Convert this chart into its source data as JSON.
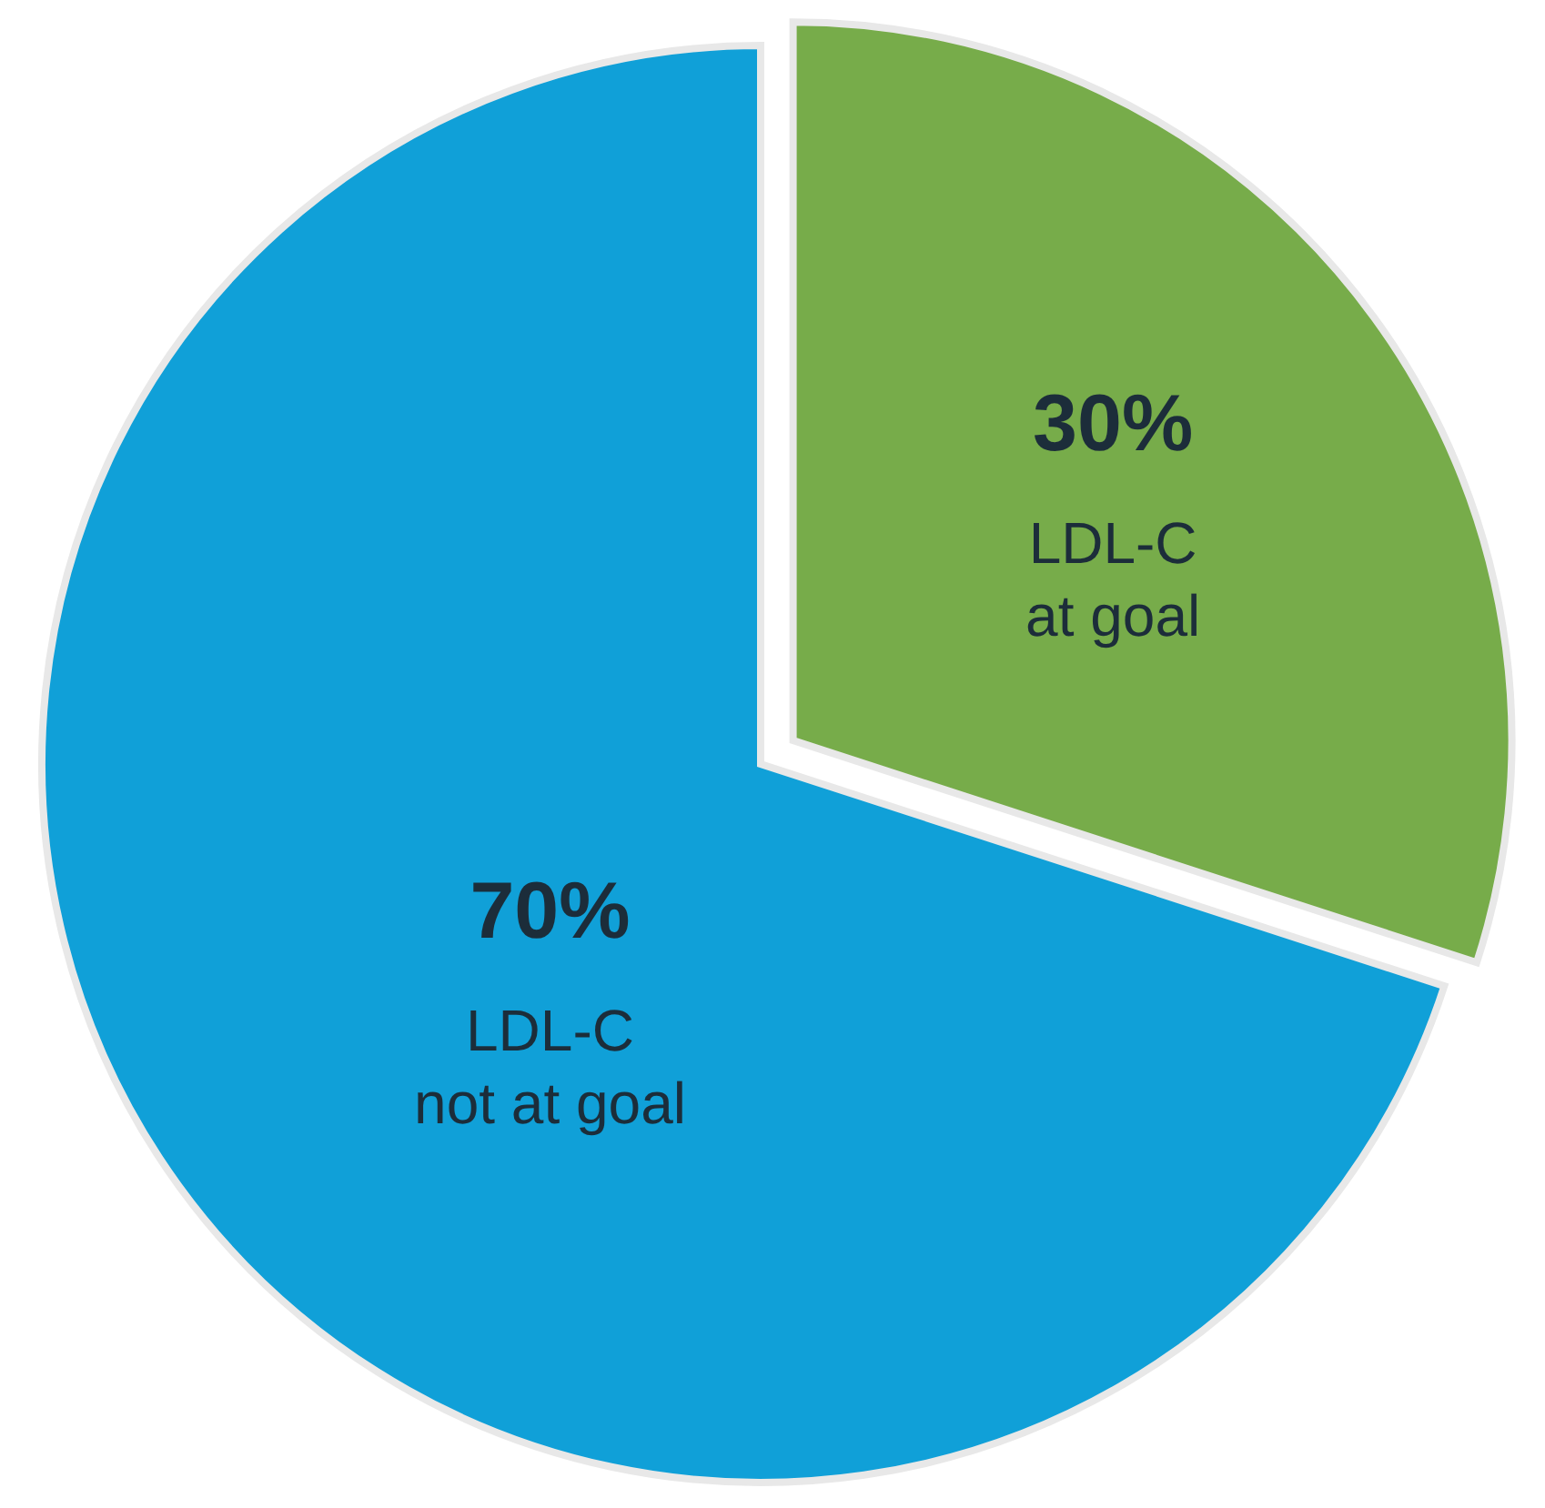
{
  "chart_data": {
    "type": "pie",
    "categories": [
      "LDL-C at goal",
      "LDL-C not at goal"
    ],
    "values": [
      30,
      70
    ],
    "colors": [
      "#77ac4a",
      "#10a0d8"
    ],
    "value_labels": [
      "30%",
      "70%"
    ]
  }
}
